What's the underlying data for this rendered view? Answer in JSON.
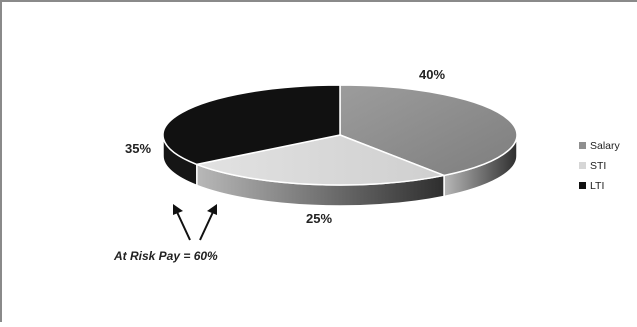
{
  "chart_data": {
    "type": "pie",
    "style": "3d",
    "categories": [
      "Salary",
      "STI",
      "LTI"
    ],
    "values": [
      40,
      25,
      35
    ],
    "labels": [
      "40%",
      "25%",
      "35%"
    ],
    "colors": {
      "Salary": "#8f8f8f",
      "STI": "#d6d6d6",
      "LTI": "#111111"
    },
    "legend": {
      "placement": "right",
      "entries": [
        "Salary",
        "STI",
        "LTI"
      ]
    },
    "annotation": "At Risk Pay = 60%"
  }
}
